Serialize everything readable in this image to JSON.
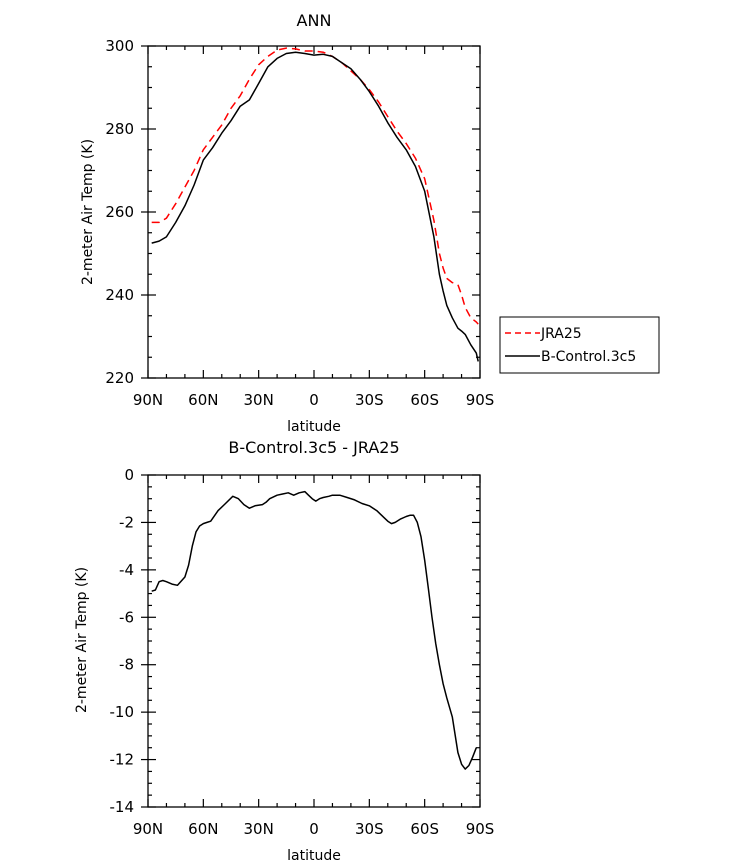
{
  "chart_data": [
    {
      "type": "line",
      "title": "ANN",
      "xlabel": "latitude",
      "ylabel": "2-meter Air Temp (K)",
      "x_ticks": [
        90,
        60,
        30,
        0,
        -30,
        -60,
        -90
      ],
      "x_tick_labels": [
        "90N",
        "60N",
        "30N",
        "0",
        "30S",
        "60S",
        "90S"
      ],
      "xlim": [
        90,
        -90
      ],
      "ylim": [
        220,
        300
      ],
      "y_ticks": [
        220,
        240,
        260,
        280,
        300
      ],
      "y_tick_labels": [
        "220",
        "240",
        "260",
        "280",
        "300"
      ],
      "legend": "outside-right",
      "series": [
        {
          "name": "JRA25",
          "color": "#ff0000",
          "dash": "dashed",
          "x": [
            88,
            84,
            80,
            75,
            70,
            65,
            60,
            55,
            50,
            45,
            40,
            35,
            30,
            25,
            20,
            15,
            10,
            5,
            0,
            -5,
            -10,
            -15,
            -20,
            -25,
            -30,
            -35,
            -40,
            -45,
            -50,
            -55,
            -60,
            -65,
            -68,
            -70,
            -72,
            -75,
            -78,
            -80,
            -82,
            -85,
            -88,
            -89
          ],
          "y": [
            257.5,
            257.5,
            258.5,
            262,
            266,
            270,
            275,
            278,
            281,
            285,
            288,
            292,
            295.5,
            297.5,
            299,
            299.5,
            299.3,
            298.8,
            298.8,
            298.5,
            297.5,
            296,
            294,
            292,
            289.5,
            286.5,
            283,
            279.5,
            276.5,
            273,
            268,
            258,
            250,
            246.5,
            244,
            243,
            242.5,
            240,
            237,
            234.5,
            233.5,
            233
          ]
        },
        {
          "name": "B-Control.3c5",
          "color": "#000000",
          "dash": "solid",
          "x": [
            88,
            84,
            80,
            75,
            70,
            65,
            60,
            55,
            50,
            45,
            40,
            35,
            30,
            25,
            20,
            15,
            10,
            5,
            0,
            -5,
            -10,
            -15,
            -20,
            -25,
            -30,
            -35,
            -40,
            -45,
            -50,
            -55,
            -60,
            -65,
            -68,
            -70,
            -72,
            -75,
            -78,
            -80,
            -82,
            -85,
            -88,
            -89
          ],
          "y": [
            252.5,
            253,
            254,
            257.5,
            261.5,
            266.5,
            272.5,
            275.5,
            279,
            282,
            285.5,
            287,
            291,
            295,
            297,
            298.2,
            298.5,
            298.2,
            297.8,
            298,
            297.5,
            296,
            294.5,
            292,
            289,
            285.5,
            281.5,
            278,
            275,
            271,
            265,
            254,
            245,
            241,
            237.5,
            234.5,
            232,
            231.3,
            230.5,
            228,
            226,
            224
          ]
        }
      ]
    },
    {
      "type": "line",
      "title": "B-Control.3c5 - JRA25",
      "xlabel": "latitude",
      "ylabel": "2-meter Air Temp (K)",
      "x_ticks": [
        90,
        60,
        30,
        0,
        -30,
        -60,
        -90
      ],
      "x_tick_labels": [
        "90N",
        "60N",
        "30N",
        "0",
        "30S",
        "60S",
        "90S"
      ],
      "xlim": [
        90,
        -90
      ],
      "ylim": [
        -14,
        0
      ],
      "y_ticks": [
        -14,
        -12,
        -10,
        -8,
        -6,
        -4,
        -2,
        0
      ],
      "y_tick_labels": [
        "-14",
        "-12",
        "-10",
        "-8",
        "-6",
        "-4",
        "-2",
        "0"
      ],
      "series": [
        {
          "color": "#000000",
          "dash": "solid",
          "x": [
            88,
            86,
            84,
            82,
            80,
            77,
            74,
            70,
            68,
            66,
            64,
            62,
            60,
            58,
            56,
            52,
            48,
            44,
            41,
            38,
            35,
            32,
            28,
            26,
            24,
            20,
            17,
            14,
            11,
            8,
            5,
            3,
            1,
            -1,
            -3,
            -5,
            -8,
            -10,
            -14,
            -18,
            -22,
            -26,
            -30,
            -34,
            -38,
            -40,
            -42,
            -44,
            -47,
            -50,
            -52,
            -54,
            -56,
            -58,
            -60,
            -62,
            -64,
            -66,
            -68,
            -70,
            -72,
            -75,
            -78,
            -80,
            -82,
            -84,
            -86,
            -88
          ],
          "y": [
            -4.9,
            -4.85,
            -4.5,
            -4.45,
            -4.5,
            -4.6,
            -4.65,
            -4.3,
            -3.8,
            -3.0,
            -2.4,
            -2.15,
            -2.05,
            -2.0,
            -1.95,
            -1.5,
            -1.2,
            -0.9,
            -1.0,
            -1.25,
            -1.4,
            -1.3,
            -1.25,
            -1.15,
            -1.0,
            -0.85,
            -0.8,
            -0.75,
            -0.85,
            -0.75,
            -0.7,
            -0.85,
            -1.0,
            -1.1,
            -1.0,
            -0.95,
            -0.9,
            -0.85,
            -0.85,
            -0.95,
            -1.05,
            -1.2,
            -1.3,
            -1.5,
            -1.8,
            -1.95,
            -2.05,
            -2.0,
            -1.85,
            -1.75,
            -1.7,
            -1.7,
            -2.0,
            -2.6,
            -3.6,
            -4.8,
            -6.0,
            -7.1,
            -8.0,
            -8.8,
            -9.4,
            -10.2,
            -11.7,
            -12.2,
            -12.4,
            -12.25,
            -11.9,
            -11.5
          ]
        }
      ]
    }
  ]
}
